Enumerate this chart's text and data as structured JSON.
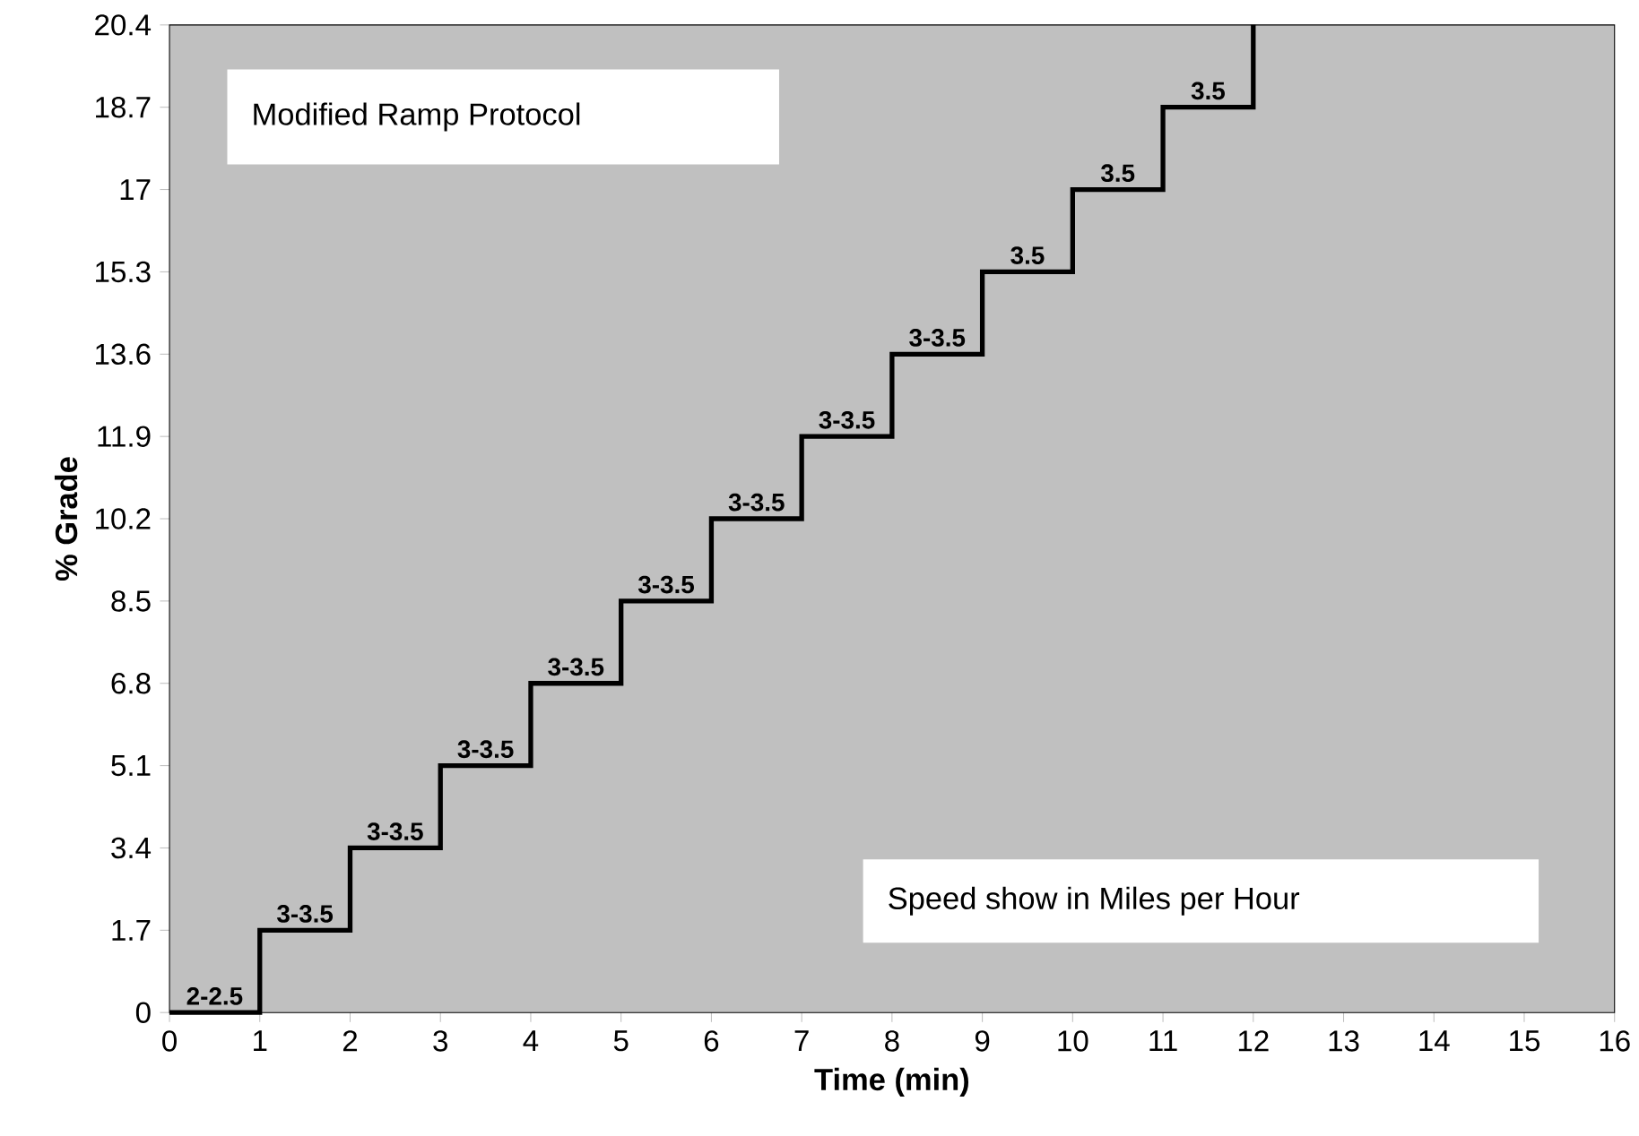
{
  "chart_data": {
    "type": "step",
    "title": "Modified Ramp Protocol",
    "xlabel": "Time (min)",
    "ylabel": "% Grade",
    "annotations": [
      "Speed show in Miles per Hour",
      {
        "text": "2-2.5",
        "x": 0,
        "y": 0
      },
      {
        "text": "3-3.5",
        "x": 1,
        "y": 1.7
      },
      {
        "text": "3-3.5",
        "x": 2,
        "y": 3.4
      },
      {
        "text": "3-3.5",
        "x": 3,
        "y": 5.1
      },
      {
        "text": "3-3.5",
        "x": 4,
        "y": 6.8
      },
      {
        "text": "3-3.5",
        "x": 5,
        "y": 8.5
      },
      {
        "text": "3-3.5",
        "x": 6,
        "y": 10.2
      },
      {
        "text": "3-3.5",
        "x": 7,
        "y": 11.9
      },
      {
        "text": "3-3.5",
        "x": 8,
        "y": 13.6
      },
      {
        "text": "3.5",
        "x": 9,
        "y": 15.3
      },
      {
        "text": "3.5",
        "x": 10,
        "y": 17
      },
      {
        "text": "3.5",
        "x": 11,
        "y": 18.7
      }
    ],
    "x": [
      0,
      1,
      2,
      3,
      4,
      5,
      6,
      7,
      8,
      9,
      10,
      11,
      12
    ],
    "series": [
      {
        "color": "#000000",
        "values": [
          0,
          1.7,
          3.4,
          5.1,
          6.8,
          8.5,
          10.2,
          11.9,
          13.6,
          15.3,
          17,
          18.7,
          20.4
        ]
      }
    ],
    "xlim": [
      0,
      16
    ],
    "ylim": [
      0,
      20.4
    ],
    "xticks": [
      0,
      1,
      2,
      3,
      4,
      5,
      6,
      7,
      8,
      9,
      10,
      11,
      12,
      13,
      14,
      15,
      16
    ],
    "yticks": [
      0,
      1.7,
      3.4,
      5.1,
      6.8,
      8.5,
      10.2,
      11.9,
      13.6,
      15.3,
      17,
      18.7,
      20.4
    ]
  }
}
